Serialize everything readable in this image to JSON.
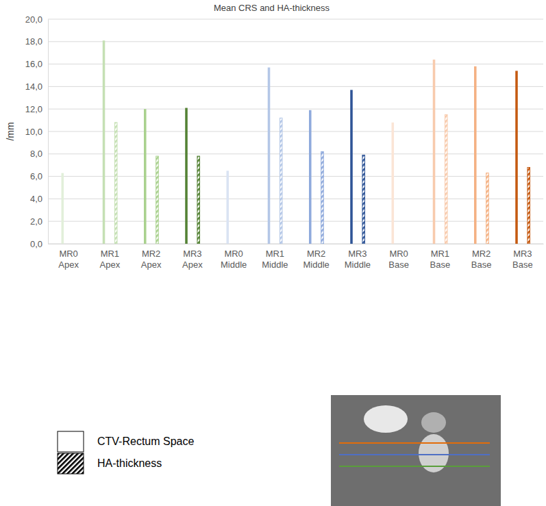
{
  "chart_data": {
    "type": "bar",
    "title": "Mean CRS and HA-thickness",
    "ylabel": "/mm",
    "categories": [
      "MR0 Apex",
      "MR1 Apex",
      "MR2 Apex",
      "MR3 Apex",
      "MR0 Middle",
      "MR1 Middle",
      "MR2 Middle",
      "MR3 Middle",
      "MR0 Base",
      "MR1 Base",
      "MR2 Base",
      "MR3 Base"
    ],
    "series": [
      {
        "name": "CTV-Rectum Space",
        "colors": [
          "#e2efda",
          "#c5e0b4",
          "#a9d18e",
          "#548235",
          "#dae3f3",
          "#b4c7e7",
          "#8faadc",
          "#2f5597",
          "#fbe5d6",
          "#f8cbad",
          "#f4b183",
          "#c55a11"
        ],
        "values": [
          6.3,
          18.1,
          12.0,
          12.1,
          6.5,
          15.7,
          11.9,
          13.7,
          10.8,
          16.4,
          15.8,
          15.4
        ]
      },
      {
        "name": "HA-thickness",
        "colors": [
          "#e2efda",
          "#c5e0b4",
          "#a9d18e",
          "#548235",
          "#dae3f3",
          "#b4c7e7",
          "#8faadc",
          "#2f5597",
          "#fbe5d6",
          "#f8cbad",
          "#f4b183",
          "#c55a11"
        ],
        "values": [
          null,
          10.8,
          7.8,
          7.8,
          null,
          11.2,
          8.2,
          7.9,
          null,
          11.5,
          6.3,
          6.8
        ]
      }
    ],
    "ylim": [
      0,
      20
    ],
    "yticks": [
      {
        "value": 0,
        "label": "0,0"
      },
      {
        "value": 2,
        "label": "2,0"
      },
      {
        "value": 4,
        "label": "4,0"
      },
      {
        "value": 6,
        "label": "6,0"
      },
      {
        "value": 8,
        "label": "8,0"
      },
      {
        "value": 10,
        "label": "10,0"
      },
      {
        "value": 12,
        "label": "12,0"
      },
      {
        "value": 14,
        "label": "14,0"
      },
      {
        "value": 16,
        "label": "16,0"
      },
      {
        "value": 18,
        "label": "18,0"
      },
      {
        "value": 20,
        "label": "20,0"
      }
    ],
    "grid": true,
    "legend": "bottom-left"
  }
}
